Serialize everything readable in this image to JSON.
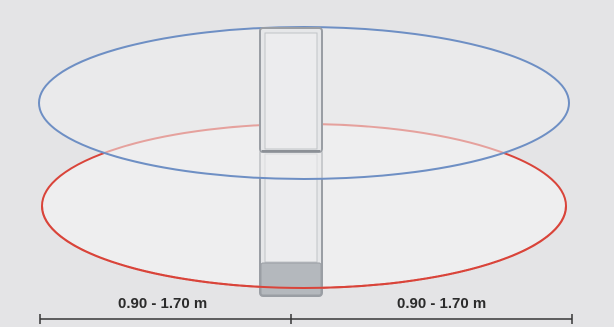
{
  "diagram": {
    "dimension_left": "0.90 - 1.70 m",
    "dimension_right": "0.90 - 1.70 m",
    "colors": {
      "background": "#e4e4e6",
      "zone_fill": "#eeeeef",
      "upper_zone_stroke": "#6e8fc4",
      "lower_zone_stroke": "#d9443a",
      "pillar_fill": "#e6e7e9",
      "pillar_stroke": "#9a9ea4",
      "pillar_base": "#b4b8bd",
      "dimension_line": "#333333"
    },
    "icons": {
      "antenna": "antenna-pillar-icon"
    }
  }
}
